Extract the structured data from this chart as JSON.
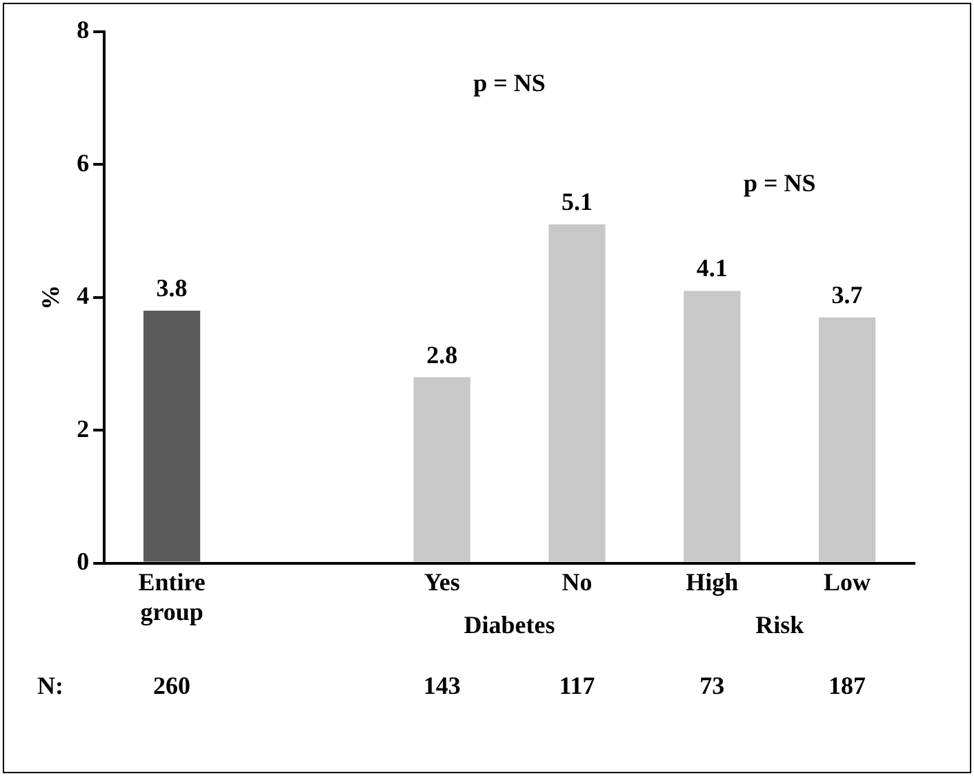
{
  "chart_data": {
    "type": "bar",
    "ylabel": "%",
    "categories": [
      "Entire group",
      null,
      "Yes",
      "No",
      "High",
      "Low"
    ],
    "values": [
      3.8,
      null,
      2.8,
      5.1,
      4.1,
      3.7
    ],
    "colors": [
      "#5a5a5a",
      "#c8c8c8",
      "#c8c8c8",
      "#c8c8c8",
      "#c8c8c8",
      "#c8c8c8"
    ],
    "ylim": [
      0,
      8
    ],
    "yticks": [
      0,
      2,
      4,
      6,
      8
    ],
    "grid": false,
    "legend": false,
    "data_labels": true,
    "annotations": [
      "p = NS",
      "p = NS",
      "Diabetes",
      "Risk",
      "N:",
      "260",
      "143",
      "117",
      "73",
      "187"
    ]
  }
}
